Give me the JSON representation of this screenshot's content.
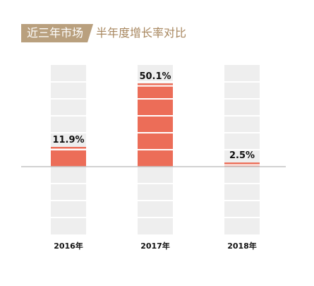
{
  "header": {
    "tag": "近三年市场",
    "rest": "半年度增长率对比"
  },
  "colors": {
    "bar": "#ec6d58",
    "slot": "#eeeeee",
    "divider": "#ffffff",
    "baseline": "#c4c4c4",
    "tag_bg": "#b9a07e",
    "tag_text": "#ffffff",
    "title_rest": "#a8875f"
  },
  "chart_data": {
    "type": "bar",
    "categories": [
      "2016年",
      "2017年",
      "2018年"
    ],
    "values": [
      11.9,
      50.1,
      2.5
    ],
    "value_labels": [
      "11.9%",
      "50.1%",
      "2.5%"
    ],
    "ylim": [
      -41,
      61
    ],
    "grid": false,
    "legend": "none",
    "title": "",
    "xlabel": "",
    "ylabel": ""
  }
}
